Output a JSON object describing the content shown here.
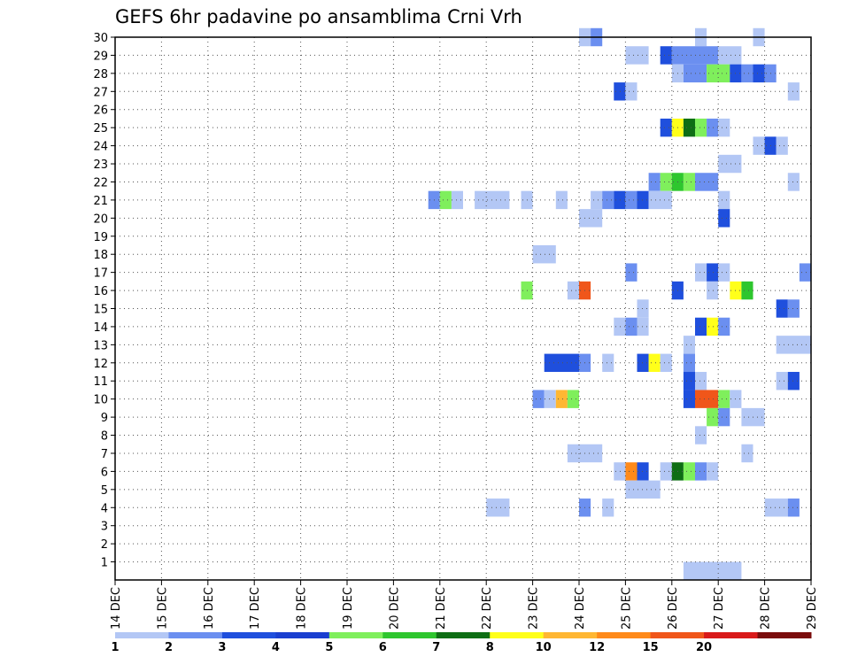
{
  "chart_data": {
    "type": "heatmap",
    "title": "GEFS 6hr padavine po ansamblima Crni Vrh",
    "x": {
      "unit": "days",
      "range": [
        14,
        29
      ],
      "tick_labels": [
        "14 DEC",
        "15 DEC",
        "16 DEC",
        "17 DEC",
        "18 DEC",
        "19 DEC",
        "20 DEC",
        "21 DEC",
        "22 DEC",
        "23 DEC",
        "24 DEC",
        "25 DEC",
        "26 DEC",
        "27 DEC",
        "28 DEC",
        "29 DEC"
      ],
      "tick_values": [
        14,
        15,
        16,
        17,
        18,
        19,
        20,
        21,
        22,
        23,
        24,
        25,
        26,
        27,
        28,
        29
      ],
      "step_hours": 6
    },
    "y": {
      "range": [
        0,
        30
      ],
      "tick_labels": [
        "1",
        "2",
        "3",
        "4",
        "5",
        "6",
        "7",
        "8",
        "9",
        "10",
        "11",
        "12",
        "13",
        "14",
        "15",
        "16",
        "17",
        "18",
        "19",
        "20",
        "21",
        "22",
        "23",
        "24",
        "25",
        "26",
        "27",
        "28",
        "29",
        "30"
      ],
      "tick_values": [
        1,
        2,
        3,
        4,
        5,
        6,
        7,
        8,
        9,
        10,
        11,
        12,
        13,
        14,
        15,
        16,
        17,
        18,
        19,
        20,
        21,
        22,
        23,
        24,
        25,
        26,
        27,
        28,
        29,
        30
      ]
    },
    "grid": true,
    "legend": {
      "placement": "bottom",
      "colors": [
        "#b3c7f5",
        "#6b8ff0",
        "#1f4fdd",
        "#1a3fd0",
        "#7fef5c",
        "#2ec62e",
        "#0e6e14",
        "#ffff1a",
        "#ffb733",
        "#ff8a1a",
        "#f0561a",
        "#d91a1a",
        "#7a0c0c"
      ],
      "labels": [
        "1",
        "2",
        "3",
        "4",
        "5",
        "6",
        "7",
        "8",
        "10",
        "12",
        "15",
        "20"
      ]
    },
    "cells": [
      {
        "y": 30,
        "d0": 24,
        "n": 1,
        "v": 1
      },
      {
        "y": 30,
        "d0": 24.25,
        "n": 1,
        "v": 2
      },
      {
        "y": 30,
        "d0": 26.5,
        "n": 1,
        "v": 1
      },
      {
        "y": 30,
        "d0": 27.75,
        "n": 1,
        "v": 1
      },
      {
        "y": 29,
        "d0": 25,
        "n": 2,
        "v": 1
      },
      {
        "y": 29,
        "d0": 25.75,
        "n": 1,
        "v": 3
      },
      {
        "y": 29,
        "d0": 26,
        "n": 4,
        "v": 2
      },
      {
        "y": 29,
        "d0": 27,
        "n": 2,
        "v": 1
      },
      {
        "y": 28,
        "d0": 26,
        "n": 1,
        "v": 1
      },
      {
        "y": 28,
        "d0": 26.25,
        "n": 2,
        "v": 2
      },
      {
        "y": 28,
        "d0": 26.75,
        "n": 2,
        "v": 5
      },
      {
        "y": 28,
        "d0": 27.25,
        "n": 1,
        "v": 3
      },
      {
        "y": 28,
        "d0": 27.5,
        "n": 1,
        "v": 2
      },
      {
        "y": 28,
        "d0": 27.75,
        "n": 1,
        "v": 3
      },
      {
        "y": 28,
        "d0": 28,
        "n": 1,
        "v": 2
      },
      {
        "y": 27,
        "d0": 24.75,
        "n": 1,
        "v": 3
      },
      {
        "y": 27,
        "d0": 25,
        "n": 1,
        "v": 1
      },
      {
        "y": 27,
        "d0": 28.5,
        "n": 1,
        "v": 1
      },
      {
        "y": 25,
        "d0": 25.75,
        "n": 1,
        "v": 3
      },
      {
        "y": 25,
        "d0": 26,
        "n": 1,
        "v": 8
      },
      {
        "y": 25,
        "d0": 26.25,
        "n": 1,
        "v": 7
      },
      {
        "y": 25,
        "d0": 26.5,
        "n": 1,
        "v": 5
      },
      {
        "y": 25,
        "d0": 26.75,
        "n": 1,
        "v": 2
      },
      {
        "y": 25,
        "d0": 27,
        "n": 1,
        "v": 1
      },
      {
        "y": 24,
        "d0": 27.75,
        "n": 1,
        "v": 1
      },
      {
        "y": 24,
        "d0": 28,
        "n": 1,
        "v": 3
      },
      {
        "y": 24,
        "d0": 28.25,
        "n": 1,
        "v": 1
      },
      {
        "y": 23,
        "d0": 27,
        "n": 2,
        "v": 1
      },
      {
        "y": 22,
        "d0": 25.5,
        "n": 1,
        "v": 2
      },
      {
        "y": 22,
        "d0": 25.75,
        "n": 1,
        "v": 5
      },
      {
        "y": 22,
        "d0": 26,
        "n": 1,
        "v": 6
      },
      {
        "y": 22,
        "d0": 26.25,
        "n": 1,
        "v": 5
      },
      {
        "y": 22,
        "d0": 26.5,
        "n": 2,
        "v": 2
      },
      {
        "y": 22,
        "d0": 28.5,
        "n": 1,
        "v": 1
      },
      {
        "y": 21,
        "d0": 20.75,
        "n": 1,
        "v": 2
      },
      {
        "y": 21,
        "d0": 21,
        "n": 1,
        "v": 5
      },
      {
        "y": 21,
        "d0": 21.25,
        "n": 1,
        "v": 1
      },
      {
        "y": 21,
        "d0": 21.75,
        "n": 3,
        "v": 1
      },
      {
        "y": 21,
        "d0": 22.75,
        "n": 1,
        "v": 1
      },
      {
        "y": 21,
        "d0": 23.5,
        "n": 1,
        "v": 1
      },
      {
        "y": 21,
        "d0": 24.25,
        "n": 1,
        "v": 1
      },
      {
        "y": 21,
        "d0": 24.5,
        "n": 1,
        "v": 2
      },
      {
        "y": 21,
        "d0": 24.75,
        "n": 1,
        "v": 3
      },
      {
        "y": 21,
        "d0": 25,
        "n": 1,
        "v": 2
      },
      {
        "y": 21,
        "d0": 25.25,
        "n": 1,
        "v": 3
      },
      {
        "y": 21,
        "d0": 25.5,
        "n": 2,
        "v": 1
      },
      {
        "y": 21,
        "d0": 27,
        "n": 1,
        "v": 1
      },
      {
        "y": 20,
        "d0": 24,
        "n": 2,
        "v": 1
      },
      {
        "y": 20,
        "d0": 27,
        "n": 1,
        "v": 3
      },
      {
        "y": 18,
        "d0": 23,
        "n": 2,
        "v": 1
      },
      {
        "y": 17,
        "d0": 25,
        "n": 1,
        "v": 2
      },
      {
        "y": 17,
        "d0": 26.5,
        "n": 1,
        "v": 1
      },
      {
        "y": 17,
        "d0": 26.75,
        "n": 1,
        "v": 3
      },
      {
        "y": 17,
        "d0": 27,
        "n": 1,
        "v": 1
      },
      {
        "y": 17,
        "d0": 28.75,
        "n": 1,
        "v": 2
      },
      {
        "y": 16,
        "d0": 22.75,
        "n": 1,
        "v": 5
      },
      {
        "y": 16,
        "d0": 23.75,
        "n": 1,
        "v": 1
      },
      {
        "y": 16,
        "d0": 24,
        "n": 1,
        "v": 15
      },
      {
        "y": 16,
        "d0": 26,
        "n": 1,
        "v": 3
      },
      {
        "y": 16,
        "d0": 26.75,
        "n": 1,
        "v": 1
      },
      {
        "y": 16,
        "d0": 27.25,
        "n": 1,
        "v": 8
      },
      {
        "y": 16,
        "d0": 27.5,
        "n": 1,
        "v": 6
      },
      {
        "y": 15,
        "d0": 25.25,
        "n": 1,
        "v": 1
      },
      {
        "y": 15,
        "d0": 28.25,
        "n": 1,
        "v": 3
      },
      {
        "y": 15,
        "d0": 28.5,
        "n": 1,
        "v": 2
      },
      {
        "y": 14,
        "d0": 24.75,
        "n": 1,
        "v": 1
      },
      {
        "y": 14,
        "d0": 25,
        "n": 1,
        "v": 2
      },
      {
        "y": 14,
        "d0": 25.25,
        "n": 1,
        "v": 1
      },
      {
        "y": 14,
        "d0": 26.5,
        "n": 1,
        "v": 3
      },
      {
        "y": 14,
        "d0": 26.75,
        "n": 1,
        "v": 8
      },
      {
        "y": 14,
        "d0": 27,
        "n": 1,
        "v": 2
      },
      {
        "y": 13,
        "d0": 26.25,
        "n": 1,
        "v": 1
      },
      {
        "y": 13,
        "d0": 28.25,
        "n": 3,
        "v": 1
      },
      {
        "y": 12,
        "d0": 23.25,
        "n": 3,
        "v": 3
      },
      {
        "y": 12,
        "d0": 24,
        "n": 1,
        "v": 2
      },
      {
        "y": 12,
        "d0": 24.5,
        "n": 1,
        "v": 1
      },
      {
        "y": 12,
        "d0": 25.25,
        "n": 1,
        "v": 3
      },
      {
        "y": 12,
        "d0": 25.5,
        "n": 1,
        "v": 8
      },
      {
        "y": 12,
        "d0": 25.75,
        "n": 1,
        "v": 1
      },
      {
        "y": 12,
        "d0": 26.25,
        "n": 1,
        "v": 2
      },
      {
        "y": 11,
        "d0": 26.25,
        "n": 1,
        "v": 3
      },
      {
        "y": 11,
        "d0": 26.5,
        "n": 1,
        "v": 1
      },
      {
        "y": 11,
        "d0": 28.25,
        "n": 1,
        "v": 1
      },
      {
        "y": 11,
        "d0": 28.5,
        "n": 1,
        "v": 3
      },
      {
        "y": 10,
        "d0": 23,
        "n": 1,
        "v": 2
      },
      {
        "y": 10,
        "d0": 23.25,
        "n": 1,
        "v": 1
      },
      {
        "y": 10,
        "d0": 23.5,
        "n": 1,
        "v": 10
      },
      {
        "y": 10,
        "d0": 23.75,
        "n": 1,
        "v": 5
      },
      {
        "y": 10,
        "d0": 26.25,
        "n": 1,
        "v": 3
      },
      {
        "y": 10,
        "d0": 26.5,
        "n": 2,
        "v": 15
      },
      {
        "y": 10,
        "d0": 27,
        "n": 1,
        "v": 5
      },
      {
        "y": 10,
        "d0": 27.25,
        "n": 1,
        "v": 1
      },
      {
        "y": 9,
        "d0": 26.75,
        "n": 1,
        "v": 5
      },
      {
        "y": 9,
        "d0": 27,
        "n": 1,
        "v": 2
      },
      {
        "y": 9,
        "d0": 27.5,
        "n": 2,
        "v": 1
      },
      {
        "y": 8,
        "d0": 26.5,
        "n": 1,
        "v": 1
      },
      {
        "y": 7,
        "d0": 23.75,
        "n": 3,
        "v": 1
      },
      {
        "y": 7,
        "d0": 27.5,
        "n": 1,
        "v": 1
      },
      {
        "y": 6,
        "d0": 24.75,
        "n": 1,
        "v": 1
      },
      {
        "y": 6,
        "d0": 25,
        "n": 1,
        "v": 12
      },
      {
        "y": 6,
        "d0": 25.25,
        "n": 1,
        "v": 3
      },
      {
        "y": 6,
        "d0": 25.75,
        "n": 1,
        "v": 1
      },
      {
        "y": 6,
        "d0": 26,
        "n": 1,
        "v": 7
      },
      {
        "y": 6,
        "d0": 26.25,
        "n": 1,
        "v": 5
      },
      {
        "y": 6,
        "d0": 26.5,
        "n": 1,
        "v": 2
      },
      {
        "y": 6,
        "d0": 26.75,
        "n": 1,
        "v": 1
      },
      {
        "y": 5,
        "d0": 25,
        "n": 3,
        "v": 1
      },
      {
        "y": 4,
        "d0": 22,
        "n": 2,
        "v": 1
      },
      {
        "y": 4,
        "d0": 24,
        "n": 1,
        "v": 2
      },
      {
        "y": 4,
        "d0": 24.5,
        "n": 1,
        "v": 1
      },
      {
        "y": 4,
        "d0": 28,
        "n": 2,
        "v": 1
      },
      {
        "y": 4,
        "d0": 28.5,
        "n": 1,
        "v": 2
      },
      {
        "y": 0.5,
        "d0": 26.25,
        "n": 5,
        "v": 1
      }
    ]
  }
}
